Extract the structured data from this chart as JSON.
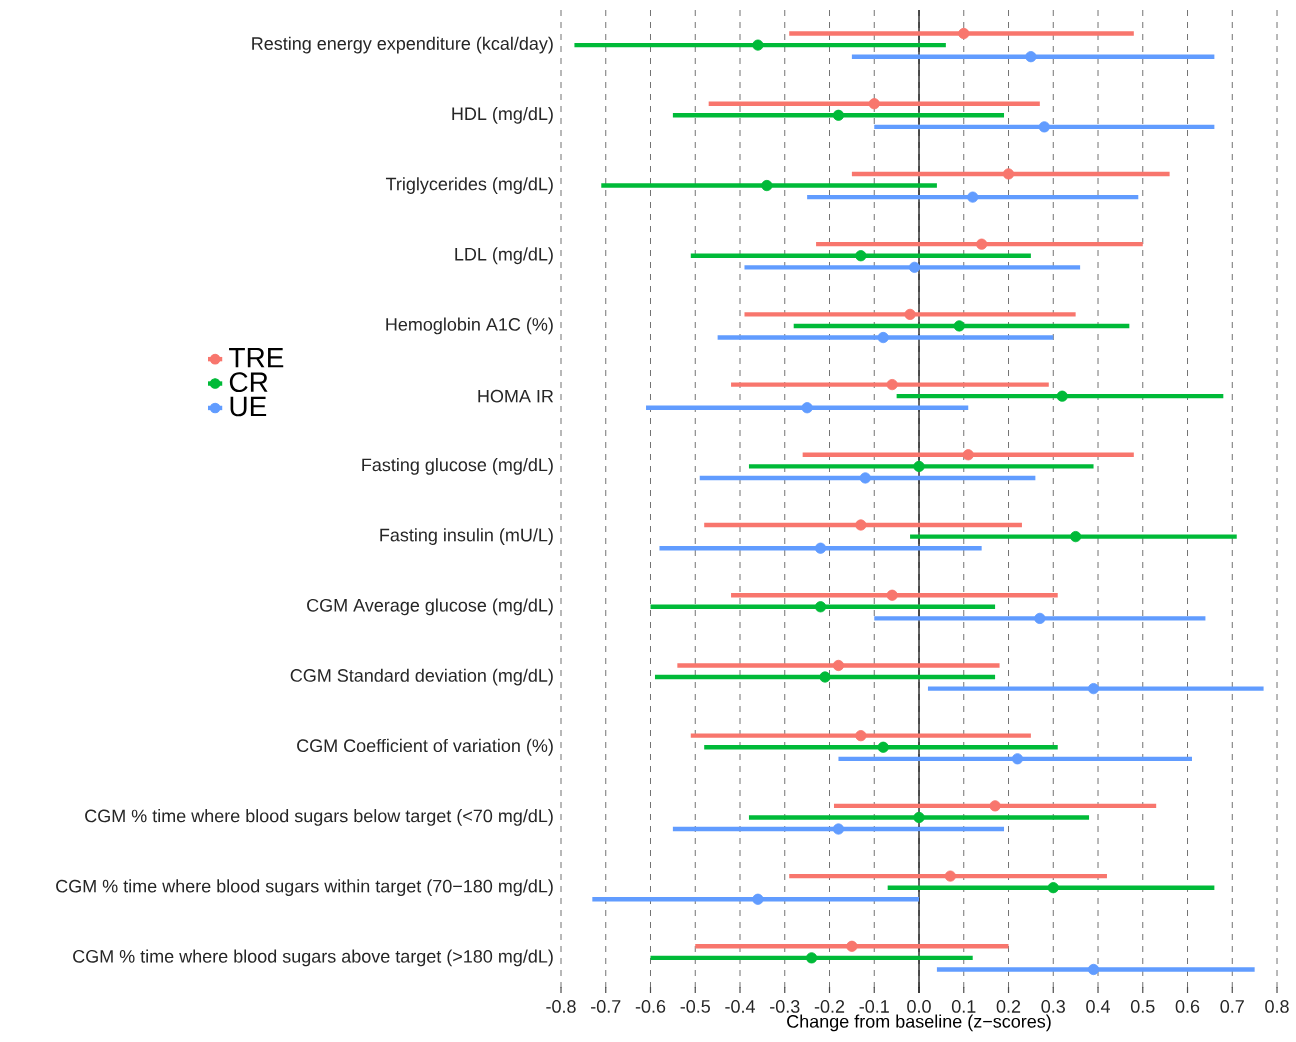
{
  "chart_data": {
    "type": "scatter",
    "orientation": "horizontal",
    "xlabel": "Change from baseline (z−scores)",
    "categories": [
      "Resting energy expenditure (kcal/day)",
      "HDL (mg/dL)",
      "Triglycerides (mg/dL)",
      "LDL (mg/dL)",
      "Hemoglobin A1C (%)",
      "HOMA IR",
      "Fasting glucose (mg/dL)",
      "Fasting insulin (mU/L)",
      "CGM Average glucose (mg/dL)",
      "CGM Standard deviation (mg/dL)",
      "CGM Coefficient of variation (%)",
      "CGM % time where blood sugars below target (<70 mg/dL)",
      "CGM % time where blood sugars within target (70−180 mg/dL)",
      "CGM % time where blood sugars above target (>180 mg/dL)"
    ],
    "series": [
      {
        "name": "TRE",
        "color": "#f8766d",
        "values": [
          0.1,
          -0.1,
          0.2,
          0.14,
          -0.02,
          -0.06,
          0.11,
          -0.13,
          -0.06,
          -0.18,
          -0.13,
          0.17,
          0.07,
          -0.15
        ],
        "errors": [
          [
            -0.29,
            0.48
          ],
          [
            -0.47,
            0.27
          ],
          [
            -0.15,
            0.56
          ],
          [
            -0.23,
            0.5
          ],
          [
            -0.39,
            0.35
          ],
          [
            -0.42,
            0.29
          ],
          [
            -0.26,
            0.48
          ],
          [
            -0.48,
            0.23
          ],
          [
            -0.42,
            0.31
          ],
          [
            -0.54,
            0.18
          ],
          [
            -0.51,
            0.25
          ],
          [
            -0.19,
            0.53
          ],
          [
            -0.29,
            0.42
          ],
          [
            -0.5,
            0.2
          ]
        ]
      },
      {
        "name": "CR",
        "color": "#00ba38",
        "values": [
          -0.36,
          -0.18,
          -0.34,
          -0.13,
          0.09,
          0.32,
          0.0,
          0.35,
          -0.22,
          -0.21,
          -0.08,
          0.0,
          0.3,
          -0.24
        ],
        "errors": [
          [
            -0.77,
            0.06
          ],
          [
            -0.55,
            0.19
          ],
          [
            -0.71,
            0.04
          ],
          [
            -0.51,
            0.25
          ],
          [
            -0.28,
            0.47
          ],
          [
            -0.05,
            0.68
          ],
          [
            -0.38,
            0.39
          ],
          [
            -0.02,
            0.71
          ],
          [
            -0.6,
            0.17
          ],
          [
            -0.59,
            0.17
          ],
          [
            -0.48,
            0.31
          ],
          [
            -0.38,
            0.38
          ],
          [
            -0.07,
            0.66
          ],
          [
            -0.6,
            0.12
          ]
        ]
      },
      {
        "name": "UE",
        "color": "#619cff",
        "values": [
          0.25,
          0.28,
          0.12,
          -0.01,
          -0.08,
          -0.25,
          -0.12,
          -0.22,
          0.27,
          0.39,
          0.22,
          -0.18,
          -0.36,
          0.39
        ],
        "errors": [
          [
            -0.15,
            0.66
          ],
          [
            -0.1,
            0.66
          ],
          [
            -0.25,
            0.49
          ],
          [
            -0.39,
            0.36
          ],
          [
            -0.45,
            0.3
          ],
          [
            -0.61,
            0.11
          ],
          [
            -0.49,
            0.26
          ],
          [
            -0.58,
            0.14
          ],
          [
            -0.1,
            0.64
          ],
          [
            0.02,
            0.77
          ],
          [
            -0.18,
            0.61
          ],
          [
            -0.55,
            0.19
          ],
          [
            -0.73,
            0.0
          ],
          [
            0.04,
            0.75
          ]
        ]
      }
    ],
    "xlim": [
      -0.8,
      0.8
    ],
    "xticks": [
      -0.8,
      -0.7,
      -0.6,
      -0.5,
      -0.4,
      -0.3,
      -0.2,
      -0.1,
      {
        "value": 0,
        "label": "0.0"
      },
      0.1,
      0.2,
      0.3,
      0.4,
      0.5,
      0.6,
      0.7,
      0.8
    ],
    "grid": "x",
    "legend": "left",
    "marker": "circle",
    "ref_lines": [
      {
        "axis": "x",
        "value": 0,
        "color": "#000000"
      }
    ]
  }
}
